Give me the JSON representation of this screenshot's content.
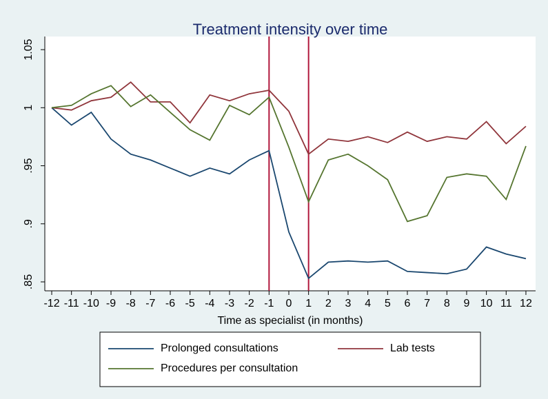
{
  "chart_data": {
    "type": "line",
    "title": "Treatment intensity over time",
    "x_label": "Time as specialist (in months)",
    "x": [
      -12,
      -11,
      -10,
      -9,
      -8,
      -7,
      -6,
      -5,
      -4,
      -3,
      -2,
      -1,
      0,
      1,
      2,
      3,
      4,
      5,
      6,
      7,
      8,
      9,
      10,
      11,
      12
    ],
    "series": [
      {
        "name": "Prolonged consultations",
        "color": "#1a476f",
        "values": [
          1.0,
          0.985,
          0.996,
          0.973,
          0.96,
          0.955,
          0.948,
          0.941,
          0.948,
          0.943,
          0.955,
          0.963,
          0.893,
          0.853,
          0.867,
          0.868,
          0.867,
          0.868,
          0.859,
          0.858,
          0.857,
          0.861,
          0.88,
          0.874,
          0.87
        ]
      },
      {
        "name": "Lab tests",
        "color": "#90353b",
        "values": [
          1.0,
          0.998,
          1.006,
          1.009,
          1.022,
          1.005,
          1.005,
          0.987,
          1.011,
          1.006,
          1.012,
          1.015,
          0.997,
          0.96,
          0.973,
          0.971,
          0.975,
          0.97,
          0.979,
          0.971,
          0.975,
          0.973,
          0.988,
          0.969,
          0.984
        ]
      },
      {
        "name": "Procedures per consultation",
        "color": "#55752f",
        "values": [
          1.0,
          1.002,
          1.012,
          1.019,
          1.001,
          1.011,
          0.996,
          0.981,
          0.972,
          1.002,
          0.994,
          1.009,
          0.966,
          0.919,
          0.955,
          0.96,
          0.95,
          0.938,
          0.902,
          0.907,
          0.94,
          0.943,
          0.941,
          0.921,
          0.967
        ]
      }
    ],
    "xlim": [
      -12.35,
      12.49
    ],
    "xticks": [
      -12,
      -11,
      -10,
      -9,
      -8,
      -7,
      -6,
      -5,
      -4,
      -3,
      -2,
      -1,
      0,
      1,
      2,
      3,
      4,
      5,
      6,
      7,
      8,
      9,
      10,
      11,
      12
    ],
    "ylim": [
      0.8423,
      1.0613
    ],
    "yticks": [
      {
        "value": 0.85,
        "label": ".85"
      },
      {
        "value": 0.9,
        "label": ".9"
      },
      {
        "value": 0.95,
        "label": ".95"
      },
      1,
      1.05
    ],
    "vlines": [
      -1,
      1
    ],
    "vline_color": "#b0173c",
    "grid": false,
    "legend_position": "bottom"
  }
}
